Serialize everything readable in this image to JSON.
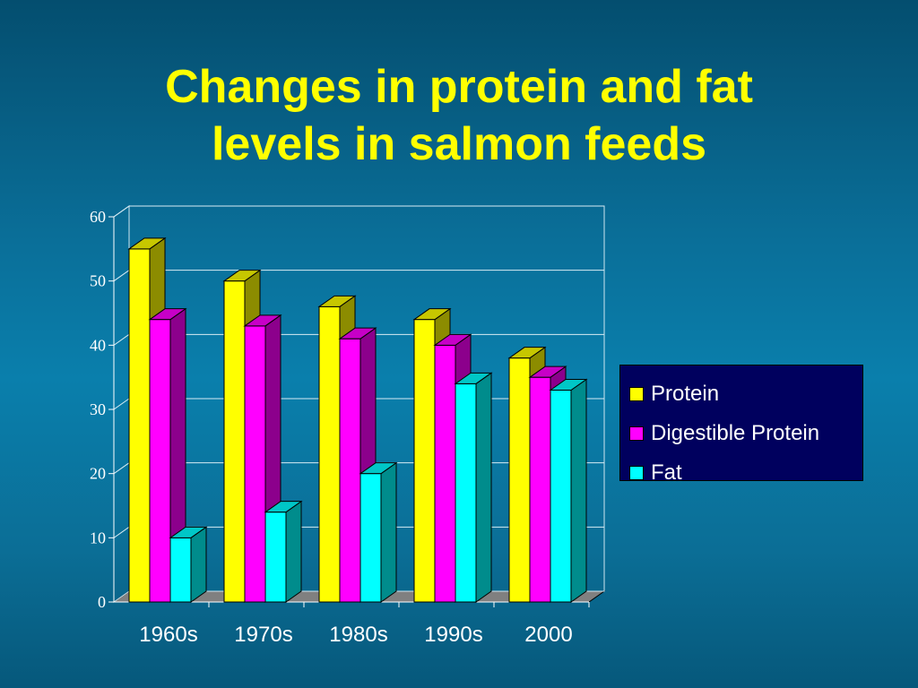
{
  "title": {
    "line1": "Changes in protein and fat",
    "line2": "levels in salmon feeds"
  },
  "colors": {
    "title": "#ffff00",
    "legend_bg": "#00005e"
  },
  "chart_data": {
    "type": "bar",
    "title": "Changes in protein and fat levels in salmon feeds",
    "xlabel": "",
    "ylabel": "",
    "categories": [
      "1960s",
      "1970s",
      "1980s",
      "1990s",
      "2000"
    ],
    "ylim": [
      0,
      60
    ],
    "yticks": [
      "0",
      "10",
      "20",
      "30",
      "40",
      "50",
      "60"
    ],
    "grid": true,
    "legend_position": "right",
    "series": [
      {
        "name": "Protein",
        "color": "#ffff00",
        "values": [
          55,
          50,
          46,
          44,
          38
        ]
      },
      {
        "name": "Digestible Protein",
        "color": "#ff00ff",
        "values": [
          44,
          43,
          41,
          40,
          35
        ]
      },
      {
        "name": "Fat",
        "color": "#00ffff",
        "values": [
          10,
          14,
          20,
          34,
          33
        ]
      }
    ]
  }
}
